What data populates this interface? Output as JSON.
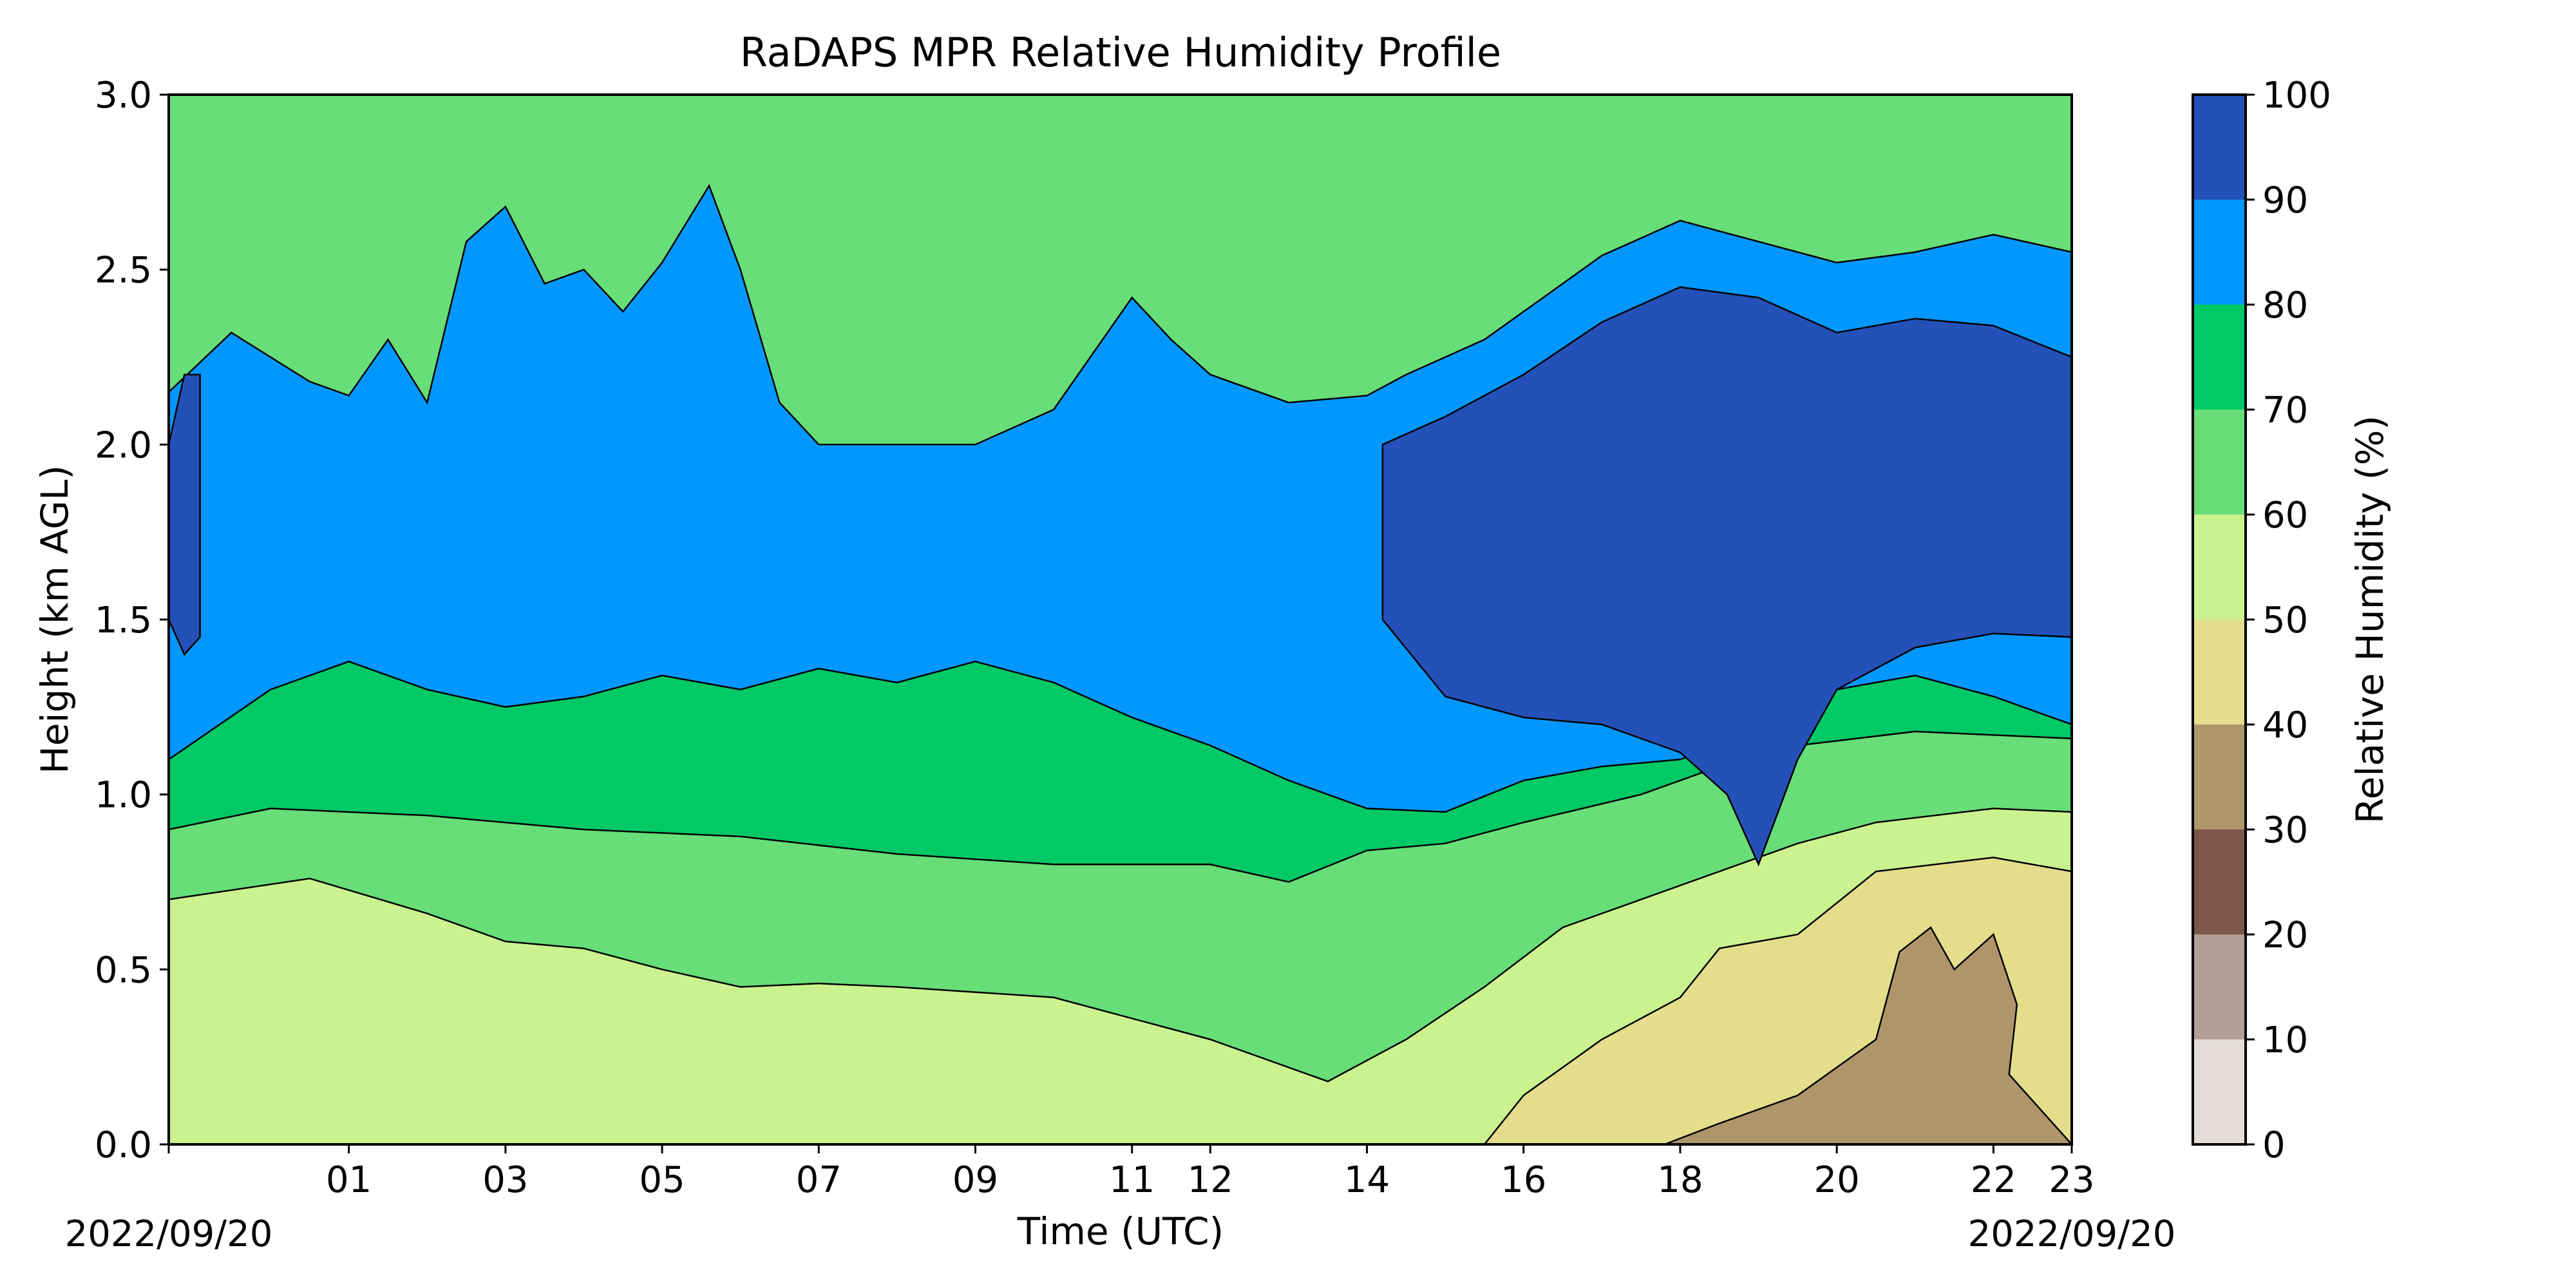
{
  "chart_data": {
    "type": "heatmap",
    "subtype": "filled-contour",
    "title": "RaDAPS MPR Relative Humidity Profile",
    "xlabel": "Time (UTC)",
    "ylabel": "Height (km AGL)",
    "x_ticks": [
      "01",
      "03",
      "05",
      "07",
      "09",
      "11",
      "12",
      "14",
      "16",
      "18",
      "20",
      "22",
      "23"
    ],
    "x_tick_hours": [
      1,
      3,
      5,
      7,
      9,
      11,
      12,
      14,
      16,
      18,
      20,
      22,
      23
    ],
    "xlim_hours": [
      -1.3,
      23
    ],
    "date_left": "2022/09/20",
    "date_right": "2022/09/20",
    "y_ticks": [
      "0.0",
      "0.5",
      "1.0",
      "1.5",
      "2.0",
      "2.5",
      "3.0"
    ],
    "ylim": [
      0,
      3
    ],
    "colorbar": {
      "label": "Relative Humidity (%)",
      "ticks": [
        "0",
        "10",
        "20",
        "30",
        "40",
        "50",
        "60",
        "70",
        "80",
        "90",
        "100"
      ],
      "levels": [
        0,
        10,
        20,
        30,
        40,
        50,
        60,
        70,
        80,
        90,
        100
      ],
      "colors": [
        "#e3dcd9",
        "#b39e95",
        "#7d5749",
        "#af966a",
        "#e4dd8b",
        "#caf38f",
        "#67de78",
        "#00c966",
        "#0297ff",
        "#2451b8"
      ]
    },
    "bands": [
      {
        "level": 60,
        "color": "#caf38f",
        "points": [
          [
            -1.3,
            0.7
          ],
          [
            0.5,
            0.76
          ],
          [
            2,
            0.66
          ],
          [
            3,
            0.58
          ],
          [
            4,
            0.56
          ],
          [
            5,
            0.5
          ],
          [
            6,
            0.45
          ],
          [
            7,
            0.46
          ],
          [
            8,
            0.45
          ],
          [
            10,
            0.42
          ],
          [
            12,
            0.3
          ],
          [
            13.5,
            0.18
          ],
          [
            14.5,
            0.3
          ],
          [
            15.5,
            0.45
          ],
          [
            16.5,
            0.62
          ],
          [
            17.5,
            0.7
          ],
          [
            18.5,
            0.78
          ],
          [
            19.5,
            0.86
          ],
          [
            20.5,
            0.92
          ],
          [
            22,
            0.96
          ],
          [
            23,
            0.95
          ]
        ]
      },
      {
        "level": 70,
        "color": "#67de78",
        "points": [
          [
            -1.3,
            0.9
          ],
          [
            0,
            0.96
          ],
          [
            2,
            0.94
          ],
          [
            4,
            0.9
          ],
          [
            6,
            0.88
          ],
          [
            8,
            0.83
          ],
          [
            10,
            0.8
          ],
          [
            12,
            0.8
          ],
          [
            13,
            0.75
          ],
          [
            14,
            0.84
          ],
          [
            15,
            0.86
          ],
          [
            16,
            0.92
          ],
          [
            17.5,
            1.0
          ],
          [
            18.5,
            1.08
          ],
          [
            19.5,
            1.14
          ],
          [
            21,
            1.18
          ],
          [
            23,
            1.16
          ]
        ]
      },
      {
        "level": 80,
        "color": "#00c966",
        "points": [
          [
            -1.3,
            1.1
          ],
          [
            0,
            1.3
          ],
          [
            1,
            1.38
          ],
          [
            2,
            1.3
          ],
          [
            3,
            1.25
          ],
          [
            4,
            1.28
          ],
          [
            5,
            1.34
          ],
          [
            6,
            1.3
          ],
          [
            7,
            1.36
          ],
          [
            8,
            1.32
          ],
          [
            9,
            1.38
          ],
          [
            10,
            1.32
          ],
          [
            11,
            1.22
          ],
          [
            12,
            1.14
          ],
          [
            13,
            1.04
          ],
          [
            14,
            0.96
          ],
          [
            15,
            0.95
          ],
          [
            16,
            1.04
          ],
          [
            17,
            1.08
          ],
          [
            18,
            1.1
          ],
          [
            19,
            1.18
          ],
          [
            20,
            1.3
          ],
          [
            21,
            1.34
          ],
          [
            22,
            1.28
          ],
          [
            23,
            1.2
          ]
        ]
      },
      {
        "level": 90,
        "color": "#0297ff",
        "points": [
          [
            -1.3,
            2.15
          ],
          [
            -0.5,
            2.32
          ],
          [
            0.5,
            2.18
          ],
          [
            1,
            2.14
          ],
          [
            1.5,
            2.3
          ],
          [
            2,
            2.12
          ],
          [
            2.5,
            2.58
          ],
          [
            3,
            2.68
          ],
          [
            3.5,
            2.46
          ],
          [
            4,
            2.5
          ],
          [
            4.5,
            2.38
          ],
          [
            5,
            2.52
          ],
          [
            5.6,
            2.74
          ],
          [
            6,
            2.5
          ],
          [
            6.5,
            2.12
          ],
          [
            7,
            2.0
          ],
          [
            8,
            2.0
          ],
          [
            9,
            2.0
          ],
          [
            10,
            2.1
          ],
          [
            11,
            2.42
          ],
          [
            11.5,
            2.3
          ],
          [
            12,
            2.2
          ],
          [
            13,
            2.12
          ],
          [
            14,
            2.14
          ],
          [
            14.5,
            2.2
          ],
          [
            15.5,
            2.3
          ],
          [
            16,
            2.38
          ],
          [
            17,
            2.54
          ],
          [
            18,
            2.64
          ],
          [
            19,
            2.58
          ],
          [
            20,
            2.52
          ],
          [
            21,
            2.55
          ],
          [
            22,
            2.6
          ],
          [
            23,
            2.55
          ]
        ]
      },
      {
        "level": 100,
        "color": "#2451b8",
        "points": [
          [
            14.2,
            2.0
          ],
          [
            15,
            2.08
          ],
          [
            16,
            2.2
          ],
          [
            17,
            2.35
          ],
          [
            18,
            2.45
          ],
          [
            19,
            2.42
          ],
          [
            20,
            2.32
          ],
          [
            21,
            2.36
          ],
          [
            22,
            2.34
          ],
          [
            23,
            2.25
          ],
          [
            23,
            1.45
          ],
          [
            22,
            1.46
          ],
          [
            21,
            1.42
          ],
          [
            20,
            1.3
          ],
          [
            19.5,
            1.1
          ],
          [
            19,
            0.8
          ],
          [
            18.6,
            1.0
          ],
          [
            18,
            1.12
          ],
          [
            17,
            1.2
          ],
          [
            16,
            1.22
          ],
          [
            15,
            1.28
          ],
          [
            14.2,
            1.5
          ]
        ]
      },
      {
        "level": 100,
        "color": "#2451b8",
        "points": [
          [
            -1.3,
            2.0
          ],
          [
            -1.1,
            2.2
          ],
          [
            -0.9,
            2.2
          ],
          [
            -0.9,
            1.45
          ],
          [
            -1.1,
            1.4
          ],
          [
            -1.3,
            1.5
          ]
        ]
      },
      {
        "level": 40,
        "color": "#e4dd8b",
        "points": [
          [
            15.5,
            0.0
          ],
          [
            16,
            0.14
          ],
          [
            17,
            0.3
          ],
          [
            18,
            0.42
          ],
          [
            18.5,
            0.56
          ],
          [
            19,
            0.58
          ],
          [
            19.5,
            0.6
          ],
          [
            20.5,
            0.78
          ],
          [
            22,
            0.82
          ],
          [
            23,
            0.78
          ],
          [
            23,
            0.0
          ]
        ]
      },
      {
        "level": 30,
        "color": "#af966a",
        "points": [
          [
            17.8,
            0.0
          ],
          [
            18.5,
            0.06
          ],
          [
            19.5,
            0.14
          ],
          [
            20.5,
            0.3
          ],
          [
            20.8,
            0.55
          ],
          [
            21.2,
            0.62
          ],
          [
            21.5,
            0.5
          ],
          [
            22,
            0.6
          ],
          [
            22.3,
            0.4
          ],
          [
            22.2,
            0.2
          ],
          [
            23,
            0.0
          ]
        ]
      }
    ]
  }
}
